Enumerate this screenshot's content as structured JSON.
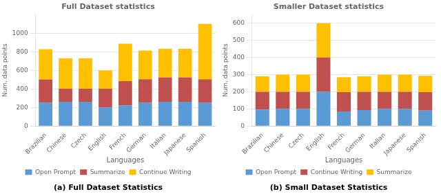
{
  "chart_data": [
    {
      "type": "bar",
      "title": "Full Dataset statistics",
      "subtitle": "(a) Full Dataset Statistics",
      "xlabel": "Languages",
      "ylabel": "Num. data points",
      "categories": [
        "Brazilian",
        "Chinese",
        "Czech",
        "English",
        "French",
        "German",
        "Italian",
        "Japanese",
        "Spanish"
      ],
      "series": [
        {
          "name": "Open Prompt",
          "color": "#5b9bd5",
          "values": [
            250,
            262,
            262,
            200,
            222,
            252,
            262,
            262,
            252
          ]
        },
        {
          "name": "Summarize",
          "color": "#c0504d",
          "values": [
            252,
            140,
            140,
            202,
            262,
            252,
            262,
            262,
            252
          ]
        },
        {
          "name": "Continue Writing",
          "color": "#ffc000",
          "values": [
            325,
            328,
            328,
            198,
            402,
            308,
            308,
            308,
            596
          ]
        }
      ],
      "ylim": [
        0,
        1200
      ],
      "yticks": [
        0,
        200,
        400,
        600,
        800,
        1000
      ],
      "stacked": true,
      "grid": true,
      "legend": "bottom"
    },
    {
      "type": "bar",
      "title": "Smaller Dataset statistics",
      "subtitle": "(b) Small Dataset Statistics",
      "xlabel": "Languages",
      "ylabel": "Num. data points",
      "categories": [
        "Brazilian",
        "Chinese",
        "Czech",
        "English",
        "French",
        "German",
        "Italian",
        "Japanese",
        "Spanish"
      ],
      "series": [
        {
          "name": "Open Prompt",
          "color": "#5b9bd5",
          "values": [
            95,
            100,
            100,
            200,
            85,
            93,
            100,
            100,
            90
          ]
        },
        {
          "name": "Continue Writing",
          "color": "#c0504d",
          "values": [
            105,
            100,
            100,
            200,
            113,
            107,
            100,
            100,
            108
          ]
        },
        {
          "name": "Summarize",
          "color": "#ffc000",
          "values": [
            90,
            100,
            100,
            200,
            87,
            90,
            100,
            100,
            95
          ]
        }
      ],
      "ylim": [
        0,
        650
      ],
      "yticks": [
        0,
        100,
        200,
        300,
        400,
        500,
        600
      ],
      "stacked": true,
      "grid": true,
      "legend": "bottom"
    }
  ]
}
